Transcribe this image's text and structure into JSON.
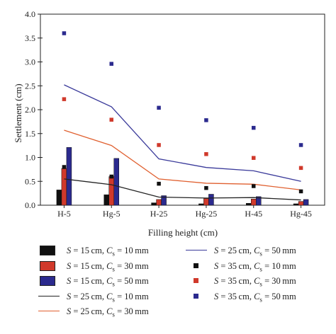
{
  "chart_data": {
    "type": "bar",
    "xlabel": "Filling height (cm)",
    "ylabel": "Settlement (cm)",
    "ylim": [
      0,
      4.0
    ],
    "yticks": [
      "0.0",
      "0.5",
      "1.0",
      "1.5",
      "2.0",
      "2.5",
      "3.0",
      "3.5",
      "4.0"
    ],
    "categories": [
      "H-5",
      "Hg-5",
      "H-25",
      "Hg-25",
      "H-45",
      "Hg-45"
    ],
    "bar_series": [
      {
        "name": "S = 15 cm, C_s = 10 mm",
        "color": "#111111",
        "values": [
          0.32,
          0.22,
          0.05,
          0.03,
          0.04,
          0.03
        ]
      },
      {
        "name": "S = 15 cm, C_s = 30 mm",
        "color": "#d0392b",
        "values": [
          0.77,
          0.6,
          0.12,
          0.14,
          0.13,
          0.08
        ]
      },
      {
        "name": "S = 15 cm, C_s = 50 mm",
        "color": "#2b2a8e",
        "values": [
          1.21,
          0.98,
          0.2,
          0.23,
          0.18,
          0.12
        ]
      }
    ],
    "line_series": [
      {
        "name": "S = 25 cm, C_s = 10 mm",
        "color": "#222222",
        "values": [
          0.55,
          0.43,
          0.17,
          0.15,
          0.16,
          0.11
        ]
      },
      {
        "name": "S = 25 cm, C_s = 30 mm",
        "color": "#e06030",
        "values": [
          1.57,
          1.25,
          0.55,
          0.46,
          0.44,
          0.32
        ]
      },
      {
        "name": "S = 25 cm, C_s = 50 mm",
        "color": "#3a3a9a",
        "values": [
          2.52,
          2.06,
          0.97,
          0.79,
          0.72,
          0.5
        ]
      }
    ],
    "scatter_series": [
      {
        "name": "S = 35 cm, C_s = 10 mm",
        "color": "#111111",
        "values": [
          0.8,
          0.6,
          0.45,
          0.36,
          0.4,
          0.29
        ]
      },
      {
        "name": "S = 35 cm, C_s = 30 mm",
        "color": "#d0392b",
        "values": [
          2.22,
          1.79,
          1.26,
          1.07,
          0.99,
          0.78
        ]
      },
      {
        "name": "S = 35 cm, C_s = 50 mm",
        "color": "#2b2a8e",
        "values": [
          3.6,
          2.96,
          2.04,
          1.78,
          1.62,
          1.26
        ]
      }
    ],
    "legend": [
      {
        "S": "15",
        "Cs": "10",
        "symbol": "bar",
        "color": "#111111"
      },
      {
        "S": "25",
        "Cs": "50",
        "symbol": "line",
        "color": "#3a3a9a"
      },
      {
        "S": "15",
        "Cs": "30",
        "symbol": "bar",
        "color": "#d0392b"
      },
      {
        "S": "35",
        "Cs": "10",
        "symbol": "dot",
        "color": "#111111"
      },
      {
        "S": "15",
        "Cs": "50",
        "symbol": "bar",
        "color": "#2b2a8e"
      },
      {
        "S": "35",
        "Cs": "30",
        "symbol": "dot",
        "color": "#d0392b"
      },
      {
        "S": "25",
        "Cs": "10",
        "symbol": "line",
        "color": "#222222"
      },
      {
        "S": "35",
        "Cs": "50",
        "symbol": "dot",
        "color": "#2b2a8e"
      },
      {
        "S": "25",
        "Cs": "30",
        "symbol": "line",
        "color": "#e06030"
      }
    ],
    "legend_unit_s": "cm",
    "legend_unit_cs": "mm"
  }
}
